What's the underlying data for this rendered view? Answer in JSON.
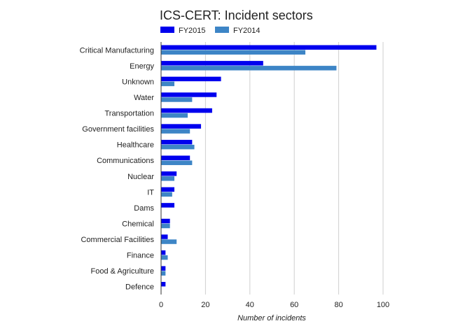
{
  "chart_data": {
    "type": "bar",
    "orientation": "horizontal",
    "title": "ICS-CERT: Incident sectors",
    "xlabel": "Number of incidents",
    "ylabel": "",
    "xlim": [
      0,
      100
    ],
    "x_ticks": [
      0,
      20,
      40,
      60,
      80,
      100
    ],
    "grid": true,
    "legend_position": "top-left",
    "categories": [
      "Critical Manufacturing",
      "Energy",
      "Unknown",
      "Water",
      "Transportation",
      "Government facilities",
      "Healthcare",
      "Communications",
      "Nuclear",
      "IT",
      "Dams",
      "Chemical",
      "Commercial Facilities",
      "Finance",
      "Food & Agriculture",
      "Defence"
    ],
    "series": [
      {
        "name": "FY2015",
        "color": "#0000ee",
        "values": [
          97,
          46,
          27,
          25,
          23,
          18,
          14,
          13,
          7,
          6,
          6,
          4,
          3,
          2,
          2,
          2
        ]
      },
      {
        "name": "FY2014",
        "color": "#3d85c6",
        "values": [
          65,
          79,
          6,
          14,
          12,
          13,
          15,
          14,
          6,
          5,
          0,
          4,
          7,
          3,
          2,
          0
        ]
      }
    ]
  }
}
